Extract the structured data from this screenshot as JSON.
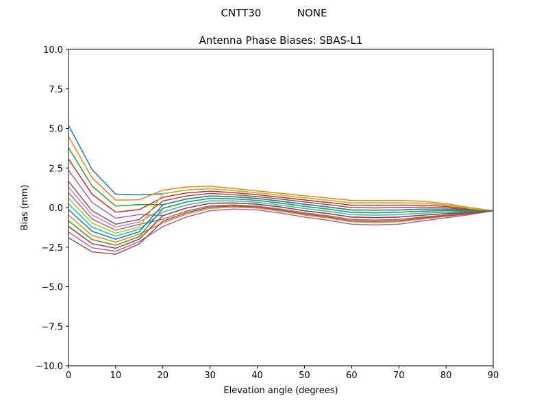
{
  "chart_data": {
    "type": "line",
    "suptitle": "CNTT30           NONE",
    "title": "Antenna Phase Biases: SBAS-L1",
    "xlabel": "Elevation angle (degrees)",
    "ylabel": "Bias (mm)",
    "xlim": [
      0,
      90
    ],
    "ylim": [
      -10,
      10
    ],
    "xticks": [
      0,
      10,
      20,
      30,
      40,
      50,
      60,
      70,
      80,
      90
    ],
    "yticks": [
      -10.0,
      -7.5,
      -5.0,
      -2.5,
      0.0,
      2.5,
      5.0,
      7.5,
      10.0
    ],
    "grid": false,
    "colors": [
      "#1f77b4",
      "#ff7f0e",
      "#2ca02c",
      "#d62728",
      "#9467bd",
      "#8c564b",
      "#e377c2",
      "#7f7f7f",
      "#bcbd22",
      "#17becf"
    ],
    "x": [
      0,
      5,
      10,
      15,
      20,
      25,
      30,
      35,
      40,
      45,
      50,
      55,
      60,
      65,
      70,
      75,
      80,
      85,
      90
    ],
    "series": [
      {
        "values": [
          5.2,
          2.4,
          0.85,
          0.8,
          0.87,
          1.11,
          1.2,
          1.07,
          0.93,
          0.78,
          0.62,
          0.46,
          0.3,
          0.3,
          0.3,
          0.28,
          0.16,
          -0.05,
          -0.2
        ]
      },
      {
        "values": [
          4.49,
          1.88,
          0.47,
          0.49,
          1.1,
          1.3,
          1.35,
          1.2,
          1.05,
          0.9,
          0.75,
          0.6,
          0.45,
          0.45,
          0.45,
          0.4,
          0.25,
          0.0,
          -0.2
        ]
      },
      {
        "values": [
          3.78,
          1.36,
          0.09,
          0.18,
          0.18,
          0.54,
          0.73,
          0.68,
          0.57,
          0.4,
          0.21,
          0.04,
          -0.15,
          -0.17,
          -0.15,
          -0.1,
          -0.11,
          -0.18,
          -0.2
        ]
      },
      {
        "values": [
          3.07,
          0.84,
          -0.29,
          -0.13,
          0.64,
          0.92,
          1.04,
          0.94,
          0.81,
          0.65,
          0.48,
          0.32,
          0.15,
          0.14,
          0.15,
          0.15,
          0.07,
          -0.09,
          -0.2
        ]
      },
      {
        "values": [
          2.36,
          0.32,
          -0.67,
          -0.44,
          -0.51,
          -0.03,
          0.27,
          0.29,
          0.21,
          0.03,
          -0.2,
          -0.38,
          -0.6,
          -0.64,
          -0.6,
          -0.48,
          -0.38,
          -0.32,
          -0.2
        ]
      },
      {
        "values": [
          1.65,
          -0.2,
          -1.05,
          -0.75,
          0.41,
          0.73,
          0.89,
          0.81,
          0.69,
          0.53,
          0.35,
          0.18,
          0.0,
          -0.02,
          0.0,
          0.03,
          -0.02,
          -0.14,
          -0.2
        ]
      },
      {
        "values": [
          1.3,
          -0.46,
          -1.24,
          -0.91,
          -0.05,
          0.35,
          0.58,
          0.55,
          0.45,
          0.28,
          0.08,
          -0.1,
          -0.3,
          -0.33,
          -0.3,
          -0.23,
          -0.2,
          -0.23,
          -0.2
        ]
      },
      {
        "values": [
          0.94,
          -0.72,
          -1.43,
          -1.06,
          -0.74,
          -0.22,
          0.11,
          0.16,
          0.09,
          -0.1,
          -0.33,
          -0.52,
          -0.75,
          -0.79,
          -0.75,
          -0.6,
          -0.47,
          -0.36,
          -0.2
        ]
      },
      {
        "values": [
          0.59,
          -0.98,
          -1.62,
          -1.22,
          0.87,
          1.11,
          1.2,
          1.07,
          0.93,
          0.78,
          0.62,
          0.46,
          0.3,
          0.3,
          0.3,
          0.28,
          0.16,
          -0.05,
          -0.2
        ]
      },
      {
        "values": [
          0.23,
          -1.24,
          -1.81,
          -1.37,
          -0.28,
          0.16,
          0.42,
          0.42,
          0.33,
          0.15,
          -0.06,
          -0.24,
          -0.45,
          -0.48,
          -0.45,
          -0.35,
          -0.29,
          -0.27,
          -0.2
        ]
      },
      {
        "values": [
          -0.13,
          -1.5,
          -2.0,
          -1.53,
          0.18,
          0.54,
          0.73,
          0.68,
          0.57,
          0.4,
          0.21,
          0.04,
          -0.15,
          -0.17,
          -0.15,
          -0.1,
          -0.11,
          -0.18,
          -0.2
        ]
      },
      {
        "values": [
          -0.48,
          -1.76,
          -2.19,
          -1.68,
          -0.97,
          -0.41,
          -0.05,
          0.03,
          -0.03,
          -0.23,
          -0.47,
          -0.66,
          -0.9,
          -0.95,
          -0.9,
          -0.73,
          -0.56,
          -0.41,
          -0.2
        ]
      },
      {
        "values": [
          -0.84,
          -2.02,
          -2.38,
          -1.84,
          -0.05,
          0.35,
          0.58,
          0.55,
          0.45,
          0.28,
          0.08,
          -0.1,
          -0.3,
          -0.33,
          -0.3,
          -0.23,
          -0.2,
          -0.23,
          -0.2
        ]
      },
      {
        "values": [
          -1.19,
          -2.28,
          -2.57,
          -1.99,
          -0.51,
          -0.03,
          0.27,
          0.29,
          0.21,
          0.03,
          -0.2,
          -0.38,
          -0.6,
          -0.64,
          -0.6,
          -0.48,
          -0.38,
          -0.32,
          -0.2
        ]
      },
      {
        "values": [
          -1.55,
          -2.54,
          -2.76,
          -2.15,
          -1.2,
          -0.6,
          -0.2,
          -0.1,
          -0.15,
          -0.35,
          -0.6,
          -0.8,
          -1.05,
          -1.1,
          -1.05,
          -0.85,
          -0.65,
          -0.45,
          -0.2
        ]
      },
      {
        "values": [
          -1.9,
          -2.8,
          -2.95,
          -2.3,
          -0.86,
          -0.32,
          0.03,
          0.1,
          0.03,
          -0.16,
          -0.4,
          -0.59,
          -0.83,
          -0.87,
          -0.83,
          -0.66,
          -0.52,
          -0.38,
          -0.2
        ]
      }
    ]
  }
}
